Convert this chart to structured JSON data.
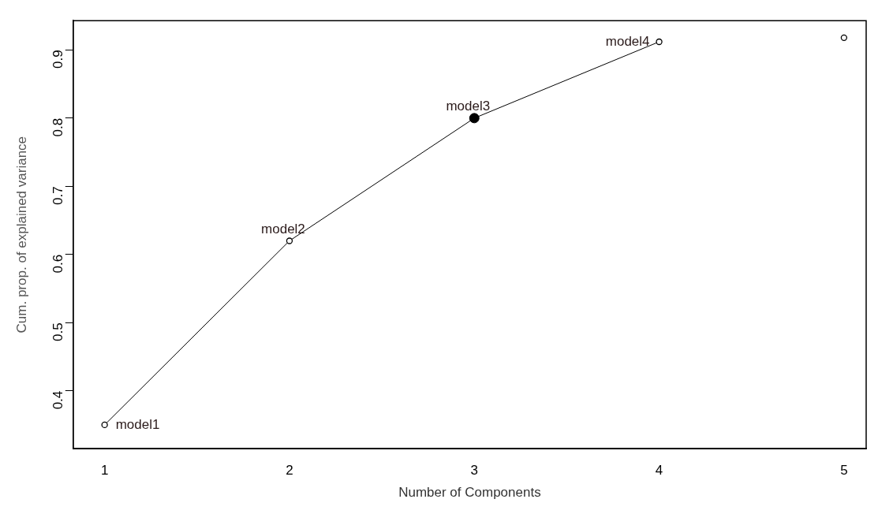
{
  "chart_data": {
    "type": "line",
    "xlabel": "Number of Components",
    "ylabel": "Cum. prop. of explained variance",
    "xlim": [
      0.83,
      5.12
    ],
    "xticks": [
      1,
      2,
      3,
      4,
      5
    ],
    "ylim": [
      0.315,
      0.943
    ],
    "yticks": [
      0.4,
      0.5,
      0.6,
      0.7,
      0.8,
      0.9
    ],
    "grid": false,
    "legend": false,
    "series": [
      {
        "type": "line",
        "color": "#000000",
        "x": [
          1,
          2,
          3,
          4
        ],
        "values": [
          0.35,
          0.62,
          0.8,
          0.912
        ],
        "marker": "none"
      },
      {
        "type": "scatter",
        "color": "#000000",
        "x": [
          1,
          2,
          4,
          5
        ],
        "values": [
          0.35,
          0.62,
          0.912,
          0.918
        ]
      },
      {
        "type": "scatter",
        "color": "#000000",
        "x": [
          3
        ],
        "values": [
          0.8
        ],
        "marker": "circle"
      }
    ],
    "annotations": [
      {
        "text": "model1",
        "x": 1,
        "y": 0.35
      },
      {
        "text": "model2",
        "x": 2,
        "y": 0.62
      },
      {
        "text": "model3",
        "x": 3,
        "y": 0.8
      },
      {
        "text": "model4",
        "x": 4,
        "y": 0.912
      }
    ]
  }
}
